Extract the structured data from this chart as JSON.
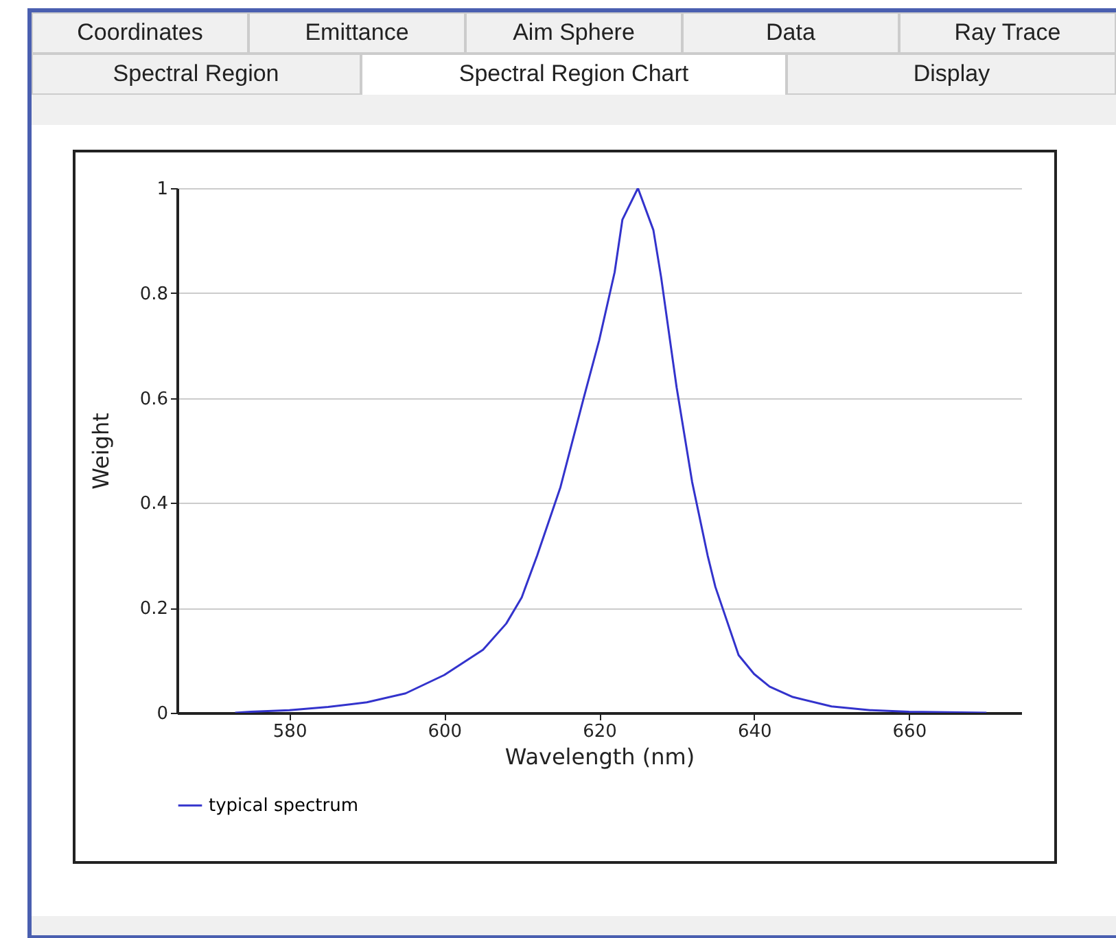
{
  "chart_data": {
    "type": "line",
    "xlabel": "Wavelength (nm)",
    "ylabel": "Weight",
    "annotations": [
      "Coordinates",
      "Emittance",
      "Aim Sphere",
      "Data",
      "Ray Trace",
      "Spectral Region",
      "Spectral Region Chart",
      "Display"
    ],
    "x": [
      573,
      575,
      580,
      585,
      590,
      595,
      600,
      605,
      608,
      610,
      612,
      615,
      618,
      620,
      622,
      623,
      625,
      627,
      628,
      630,
      632,
      634,
      635,
      638,
      640,
      642,
      645,
      650,
      655,
      660,
      665,
      670
    ],
    "series": [
      {
        "name": "typical spectrum",
        "color": "#3333cc",
        "values": [
          0,
          0.002,
          0.005,
          0.011,
          0.02,
          0.037,
          0.072,
          0.12,
          0.17,
          0.22,
          0.3,
          0.43,
          0.6,
          0.71,
          0.84,
          0.94,
          1,
          0.92,
          0.83,
          0.62,
          0.44,
          0.3,
          0.24,
          0.11,
          0.074,
          0.05,
          0.03,
          0.012,
          0.005,
          0.002,
          0.001,
          0
        ]
      }
    ],
    "xlim": [
      565.5,
      674.5
    ],
    "xticks": [
      580,
      600,
      620,
      640,
      660
    ],
    "ylim": [
      0,
      1
    ],
    "yticks": [
      0,
      0.2,
      0.4,
      0.6,
      0.8,
      1
    ],
    "grid": "y",
    "legend": "bottom",
    "marker": "none",
    "line_style": "solid"
  }
}
